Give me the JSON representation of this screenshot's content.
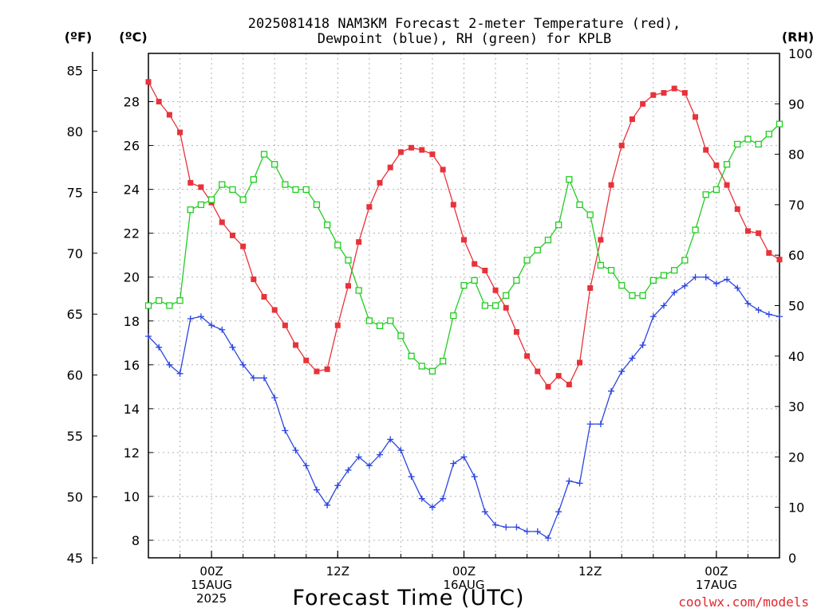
{
  "chart_data": {
    "type": "line",
    "title_line1": "2025081418 NAM3KM Forecast 2-meter Temperature (red),",
    "title_line2": "Dewpoint (blue), RH (green) for KPLB",
    "unit_f": "(ºF)",
    "unit_c": "(ºC)",
    "unit_rh": "(RH)",
    "xlabel": "Forecast Time (UTC)",
    "credit": "coolwx.com/models",
    "x_start": "2025-08-14 18Z",
    "x_step_hours": 1,
    "x_range_hours": [
      0,
      60
    ],
    "x_ticks": [
      {
        "hour": 6,
        "lines": [
          "00Z",
          "15AUG",
          "2025"
        ]
      },
      {
        "hour": 18,
        "lines": [
          "12Z"
        ]
      },
      {
        "hour": 30,
        "lines": [
          "00Z",
          "16AUG"
        ]
      },
      {
        "hour": 42,
        "lines": [
          "12Z"
        ]
      },
      {
        "hour": 54,
        "lines": [
          "00Z",
          "17AUG"
        ]
      }
    ],
    "y_left_c": {
      "range": [
        7.2,
        30.2
      ],
      "ticks": [
        8,
        10,
        12,
        14,
        16,
        18,
        20,
        22,
        24,
        26,
        28
      ]
    },
    "y_left_f": {
      "range": [
        45,
        86.4
      ],
      "ticks": [
        45,
        50,
        55,
        60,
        65,
        70,
        75,
        80,
        85
      ]
    },
    "y_right_rh": {
      "range": [
        0,
        100
      ],
      "ticks": [
        0,
        10,
        20,
        30,
        40,
        50,
        60,
        70,
        80,
        90,
        100
      ]
    },
    "grid": true,
    "series": [
      {
        "name": "Temperature",
        "axis": "c",
        "color": "#e8323a",
        "marker": "filled-square",
        "values": [
          28.9,
          28.0,
          27.4,
          26.6,
          24.3,
          24.1,
          23.4,
          22.5,
          21.9,
          21.4,
          19.9,
          19.1,
          18.5,
          17.8,
          16.9,
          16.2,
          15.7,
          15.8,
          17.8,
          19.6,
          21.6,
          23.2,
          24.3,
          25.0,
          25.7,
          25.9,
          25.8,
          25.6,
          24.9,
          23.3,
          21.7,
          20.6,
          20.3,
          19.4,
          18.6,
          17.5,
          16.4,
          15.7,
          15.0,
          15.5,
          15.1,
          16.1,
          19.5,
          21.7,
          24.2,
          26.0,
          27.2,
          27.9,
          28.3,
          28.4,
          28.6,
          28.4,
          27.3,
          25.8,
          25.1,
          24.2,
          23.1,
          22.1,
          22.0,
          21.1,
          20.8
        ]
      },
      {
        "name": "Dewpoint",
        "axis": "c",
        "color": "#2b45e0",
        "marker": "plus",
        "values": [
          17.3,
          16.8,
          16.0,
          15.6,
          18.1,
          18.2,
          17.8,
          17.6,
          16.8,
          16.0,
          15.4,
          15.4,
          14.5,
          13.0,
          12.1,
          11.4,
          10.3,
          9.6,
          10.5,
          11.2,
          11.8,
          11.4,
          11.9,
          12.6,
          12.1,
          10.9,
          9.9,
          9.5,
          9.9,
          11.5,
          11.8,
          10.9,
          9.3,
          8.7,
          8.6,
          8.6,
          8.4,
          8.4,
          8.1,
          9.3,
          10.7,
          10.6,
          13.3,
          13.3,
          14.8,
          15.7,
          16.3,
          16.9,
          18.2,
          18.7,
          19.3,
          19.6,
          20.0,
          20.0,
          19.7,
          19.9,
          19.5,
          18.8,
          18.5,
          18.3,
          18.2
        ]
      },
      {
        "name": "RH",
        "axis": "rh",
        "color": "#22cc22",
        "marker": "open-square",
        "values": [
          50,
          51,
          50,
          51,
          69,
          70,
          71,
          74,
          73,
          71,
          75,
          80,
          78,
          74,
          73,
          73,
          70,
          66,
          62,
          59,
          53,
          47,
          46,
          47,
          44,
          40,
          38,
          37,
          39,
          48,
          54,
          55,
          50,
          50,
          52,
          55,
          59,
          61,
          63,
          66,
          75,
          70,
          68,
          58,
          57,
          54,
          52,
          52,
          55,
          56,
          57,
          59,
          65,
          72,
          73,
          78,
          82,
          83,
          82,
          84,
          86
        ]
      }
    ]
  }
}
